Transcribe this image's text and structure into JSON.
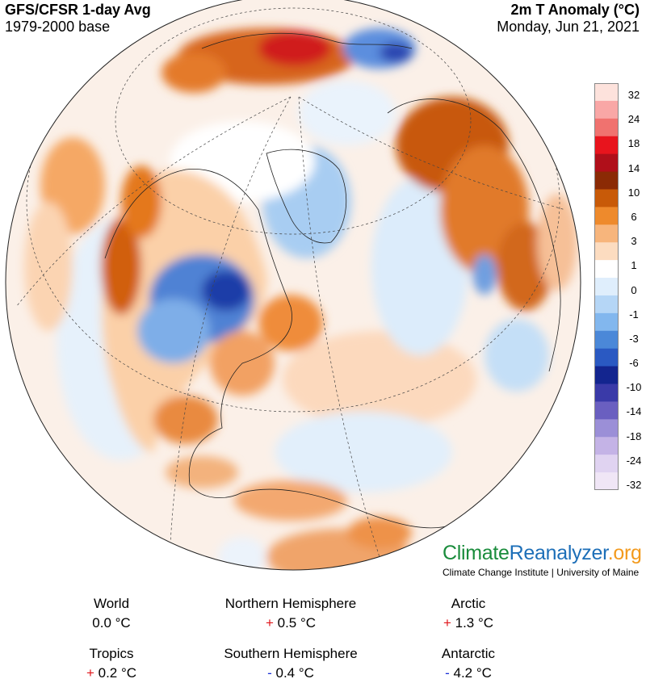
{
  "header": {
    "left_title": "GFS/CFSR 1-day Avg",
    "left_subtitle": "1979-2000 base",
    "right_title": "2m T Anomaly (°C)",
    "right_date": "Monday, Jun 21, 2021"
  },
  "legend": {
    "labels": [
      "32",
      "24",
      "18",
      "14",
      "10",
      "6",
      "3",
      "1",
      "0",
      "-1",
      "-3",
      "-6",
      "-10",
      "-14",
      "-18",
      "-24",
      "-32"
    ],
    "colors": [
      "#fde2dc",
      "#f9a7a6",
      "#f0726f",
      "#e8141d",
      "#b00f1a",
      "#8b2a05",
      "#c85a08",
      "#ee8a2c",
      "#f7b57c",
      "#fcdcc0",
      "#ffffff",
      "#dfeefc",
      "#b5d6f6",
      "#82b7ee",
      "#4b88d8",
      "#2a59c2",
      "#13258f",
      "#3a3aa8",
      "#6a5fc0",
      "#9b8fd7",
      "#c4b3e6",
      "#e0d3f1",
      "#f0e6f6"
    ]
  },
  "brand": {
    "climate": "Climate",
    "reanalyzer": "Reanalyzer",
    "org": ".org",
    "subtitle": "Climate Change Institute | University of Maine",
    "colors": {
      "climate": "#1a8c3c",
      "reanalyzer": "#1d6fb8",
      "org": "#f39a1d"
    }
  },
  "stats": [
    {
      "name": "World",
      "sign": "",
      "value": "0.0 °C"
    },
    {
      "name": "Northern Hemisphere",
      "sign": "+",
      "value": "0.5 °C"
    },
    {
      "name": "Arctic",
      "sign": "+",
      "value": "1.3 °C"
    },
    {
      "name": "Tropics",
      "sign": "+",
      "value": "0.2 °C"
    },
    {
      "name": "Southern Hemisphere",
      "sign": "-",
      "value": "0.4 °C"
    },
    {
      "name": "Antarctic",
      "sign": "-",
      "value": "4.2 °C"
    }
  ]
}
